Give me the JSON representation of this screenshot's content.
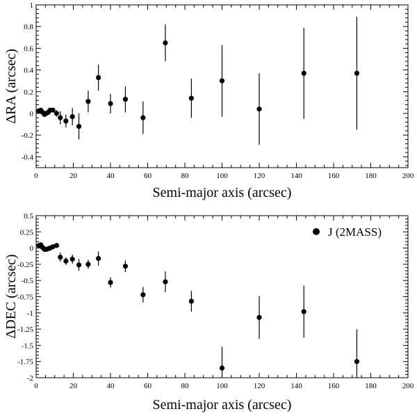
{
  "chart_data": [
    {
      "type": "scatter",
      "title": "",
      "xlabel": "Semi-major axis (arcsec)",
      "ylabel": "ΔRA (arcsec)",
      "xlim": [
        0,
        200
      ],
      "ylim": [
        -0.5,
        1.0
      ],
      "xticks": [
        "0",
        "20",
        "40",
        "60",
        "80",
        "100",
        "120",
        "140",
        "160",
        "180",
        "200"
      ],
      "yticks": [
        "-0.4",
        "-0.2",
        "0",
        "0.2",
        "0.4",
        "0.6",
        "0.8",
        "1"
      ],
      "grid": false,
      "series": [
        {
          "marker": "circle",
          "points": [
            {
              "x": 1.5,
              "y": 0.02,
              "err": 0
            },
            {
              "x": 2.5,
              "y": 0.03,
              "err": 0.02
            },
            {
              "x": 3.5,
              "y": 0.01,
              "err": 0.02
            },
            {
              "x": 4.5,
              "y": -0.01,
              "err": 0.02
            },
            {
              "x": 5.5,
              "y": 0.0,
              "err": 0.02
            },
            {
              "x": 6.5,
              "y": 0.01,
              "err": 0.02
            },
            {
              "x": 7.5,
              "y": 0.03,
              "err": 0.02
            },
            {
              "x": 9.0,
              "y": 0.03,
              "err": 0.02
            },
            {
              "x": 11.0,
              "y": 0.0,
              "err": 0.03
            },
            {
              "x": 13.0,
              "y": -0.04,
              "err": 0.06
            },
            {
              "x": 16.0,
              "y": -0.07,
              "err": 0.06
            },
            {
              "x": 19.5,
              "y": -0.03,
              "err": 0.08
            },
            {
              "x": 23.0,
              "y": -0.12,
              "err": 0.12
            },
            {
              "x": 28.0,
              "y": 0.11,
              "err": 0.1
            },
            {
              "x": 33.5,
              "y": 0.33,
              "err": 0.12
            },
            {
              "x": 40.0,
              "y": 0.09,
              "err": 0.09
            },
            {
              "x": 48.0,
              "y": 0.13,
              "err": 0.12
            },
            {
              "x": 57.5,
              "y": -0.04,
              "err": 0.15
            },
            {
              "x": 69.5,
              "y": 0.65,
              "err": 0.17
            },
            {
              "x": 83.5,
              "y": 0.14,
              "err": 0.18
            },
            {
              "x": 100.0,
              "y": 0.3,
              "err": 0.33
            },
            {
              "x": 120.0,
              "y": 0.04,
              "err": 0.33
            },
            {
              "x": 144.0,
              "y": 0.37,
              "err": 0.42
            },
            {
              "x": 172.5,
              "y": 0.37,
              "err": 0.52
            }
          ]
        }
      ]
    },
    {
      "type": "scatter",
      "title": "",
      "xlabel": "Semi-major axis (arcsec)",
      "ylabel": "ΔDEC (arcsec)",
      "xlim": [
        0,
        200
      ],
      "ylim": [
        -2.0,
        0.5
      ],
      "xticks": [
        "0",
        "20",
        "40",
        "60",
        "80",
        "100",
        "120",
        "140",
        "160",
        "180",
        "200"
      ],
      "yticks": [
        "-2",
        "-1.75",
        "-1.5",
        "-1.25",
        "-1",
        "-0.75",
        "-0.5",
        "-0.25",
        "0",
        "0.25",
        "0.5"
      ],
      "grid": false,
      "legend_position": "top-right",
      "series": [
        {
          "name": "J (2MASS)",
          "marker": "circle",
          "points": [
            {
              "x": 1.5,
              "y": 0.04,
              "err": 0
            },
            {
              "x": 2.5,
              "y": 0.05,
              "err": 0.02
            },
            {
              "x": 3.5,
              "y": 0.01,
              "err": 0.02
            },
            {
              "x": 4.5,
              "y": -0.02,
              "err": 0.02
            },
            {
              "x": 5.5,
              "y": -0.02,
              "err": 0.02
            },
            {
              "x": 6.5,
              "y": -0.01,
              "err": 0.02
            },
            {
              "x": 7.5,
              "y": 0.0,
              "err": 0.02
            },
            {
              "x": 9.0,
              "y": 0.02,
              "err": 0.02
            },
            {
              "x": 11.0,
              "y": 0.04,
              "err": 0.03
            },
            {
              "x": 13.0,
              "y": -0.14,
              "err": 0.07
            },
            {
              "x": 16.0,
              "y": -0.2,
              "err": 0.06
            },
            {
              "x": 19.5,
              "y": -0.17,
              "err": 0.07
            },
            {
              "x": 23.0,
              "y": -0.26,
              "err": 0.09
            },
            {
              "x": 28.0,
              "y": -0.25,
              "err": 0.07
            },
            {
              "x": 33.5,
              "y": -0.16,
              "err": 0.11
            },
            {
              "x": 40.0,
              "y": -0.53,
              "err": 0.08
            },
            {
              "x": 48.0,
              "y": -0.28,
              "err": 0.09
            },
            {
              "x": 57.5,
              "y": -0.72,
              "err": 0.12
            },
            {
              "x": 69.5,
              "y": -0.52,
              "err": 0.16
            },
            {
              "x": 83.5,
              "y": -0.82,
              "err": 0.16
            },
            {
              "x": 100.0,
              "y": -1.85,
              "err": 0.33
            },
            {
              "x": 120.0,
              "y": -1.07,
              "err": 0.33
            },
            {
              "x": 144.0,
              "y": -0.98,
              "err": 0.4
            },
            {
              "x": 172.5,
              "y": -1.75,
              "err": 0.5
            }
          ]
        }
      ]
    }
  ]
}
